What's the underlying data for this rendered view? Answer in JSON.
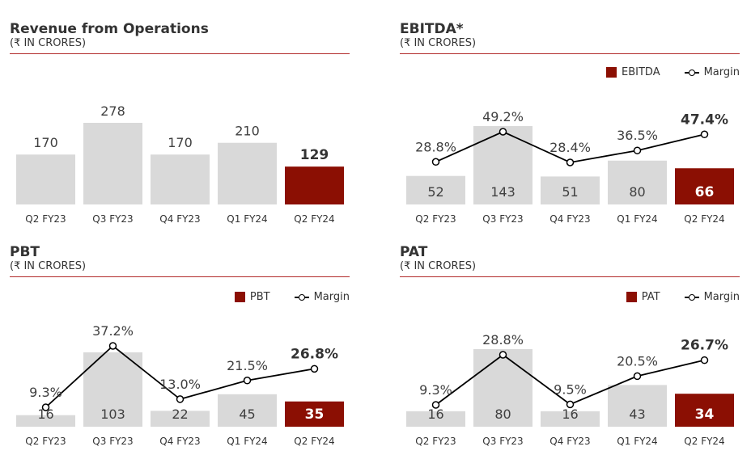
{
  "colors": {
    "highlight": "#8b0f03",
    "bar": "#d9d9d9",
    "line": "#000000",
    "rule": "#b22a2a",
    "text": "#404040"
  },
  "chart_data": [
    {
      "id": "revenue",
      "type": "bar",
      "title": "Revenue from Operations",
      "subtitle": "(₹ IN CRORES)",
      "categories": [
        "Q2 FY23",
        "Q3 FY23",
        "Q4 FY23",
        "Q1 FY24",
        "Q2 FY24"
      ],
      "values": [
        170,
        278,
        170,
        210,
        129
      ],
      "value_labels": [
        "170",
        "278",
        "170",
        "210",
        "129"
      ],
      "highlight_index": 4
    },
    {
      "id": "ebitda",
      "type": "bar",
      "title": "EBITDA*",
      "subtitle": "(₹ IN CRORES)",
      "legend": {
        "bar": "EBITDA",
        "line": "Margin",
        "position": "top-right"
      },
      "categories": [
        "Q2 FY23",
        "Q3 FY23",
        "Q4 FY23",
        "Q1 FY24",
        "Q2 FY24"
      ],
      "values": [
        52,
        143,
        51,
        80,
        66
      ],
      "value_labels": [
        "52",
        "143",
        "51",
        "80",
        "66"
      ],
      "margin": [
        28.8,
        49.2,
        28.4,
        36.5,
        47.4
      ],
      "margin_labels": [
        "28.8%",
        "49.2%",
        "28.4%",
        "36.5%",
        "47.4%"
      ],
      "highlight_index": 4
    },
    {
      "id": "pbt",
      "type": "bar",
      "title": "PBT",
      "subtitle": "(₹ IN CRORES)",
      "legend": {
        "bar": "PBT",
        "line": "Margin",
        "position": "top-right"
      },
      "categories": [
        "Q2 FY23",
        "Q3 FY23",
        "Q4 FY23",
        "Q1 FY24",
        "Q2 FY24"
      ],
      "values": [
        16,
        103,
        22,
        45,
        35
      ],
      "value_labels": [
        "16",
        "103",
        "22",
        "45",
        "35"
      ],
      "margin": [
        9.3,
        37.2,
        13.0,
        21.5,
        26.8
      ],
      "margin_labels": [
        "9.3%",
        "37.2%",
        "13.0%",
        "21.5%",
        "26.8%"
      ],
      "highlight_index": 4
    },
    {
      "id": "pat",
      "type": "bar",
      "title": "PAT",
      "subtitle": "(₹ IN CRORES)",
      "legend": {
        "bar": "PAT",
        "line": "Margin",
        "position": "top-right"
      },
      "categories": [
        "Q2 FY23",
        "Q3 FY23",
        "Q4 FY23",
        "Q1 FY24",
        "Q2 FY24"
      ],
      "values": [
        16,
        80,
        16,
        43,
        34
      ],
      "value_labels": [
        "16",
        "80",
        "16",
        "43",
        "34"
      ],
      "margin": [
        9.3,
        28.8,
        9.5,
        20.5,
        26.7
      ],
      "margin_labels": [
        "9.3%",
        "28.8%",
        "9.5%",
        "20.5%",
        "26.7%"
      ],
      "highlight_index": 4
    }
  ]
}
